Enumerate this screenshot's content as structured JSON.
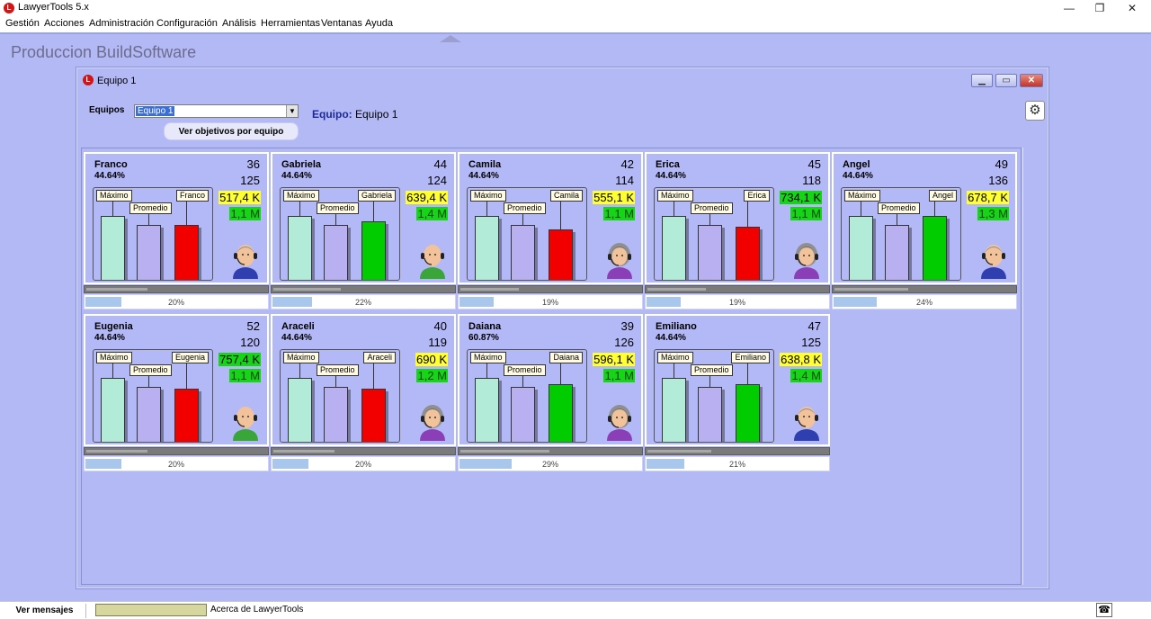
{
  "window": {
    "title": "LawyerTools 5.x"
  },
  "menu": [
    "Gestión",
    "Acciones",
    "Administración",
    "Configuración",
    "Análisis",
    "Herramientas",
    "Ventanas",
    "Ayuda"
  ],
  "mdi": {
    "title": "Produccion BuildSoftware"
  },
  "child": {
    "title": "Equipo 1",
    "equipos_label": "Equipos",
    "equipos_value": "Equipo 1",
    "equipo_key": "Equipo:",
    "equipo_value": "Equipo 1",
    "ver_objetivos": "Ver objetivos por equipo"
  },
  "bar_labels": {
    "max": "Máximo",
    "avg": "Promedio"
  },
  "colors": {
    "max": "#b2ecd8",
    "avg": "#b9b0f2",
    "red": "#f20000",
    "green": "#00cc00",
    "yellow": "#ffff33",
    "money2_bg": "#18d418"
  },
  "agents": [
    {
      "name": "Franco",
      "pct": "44.64%",
      "n1": "36",
      "n2": "125",
      "money1": "517,4 K",
      "money1_bg": "#ffff33",
      "money2": "1,1 M",
      "bar": [
        0.7,
        0.6,
        0.6
      ],
      "bar3": "red",
      "avatar": "male-headset-icon",
      "progress_pct": 20,
      "progress": "20%"
    },
    {
      "name": "Gabriela",
      "pct": "44.64%",
      "n1": "44",
      "n2": "124",
      "money1": "639,4 K",
      "money1_bg": "#ffff33",
      "money2": "1,4 M",
      "bar": [
        0.7,
        0.6,
        0.64
      ],
      "bar3": "green",
      "avatar": "bald-headset-icon",
      "progress_pct": 22,
      "progress": "22%"
    },
    {
      "name": "Camila",
      "pct": "44.64%",
      "n1": "42",
      "n2": "114",
      "money1": "555,1 K",
      "money1_bg": "#ffff33",
      "money2": "1,1 M",
      "bar": [
        0.7,
        0.6,
        0.55
      ],
      "bar3": "red",
      "avatar": "female-headset-icon",
      "progress_pct": 19,
      "progress": "19%"
    },
    {
      "name": "Erica",
      "pct": "44.64%",
      "n1": "45",
      "n2": "118",
      "money1": "734,1 K",
      "money1_bg": "#18d418",
      "money2": "1,1 M",
      "bar": [
        0.7,
        0.6,
        0.58
      ],
      "bar3": "red",
      "avatar": "female-headset-icon",
      "progress_pct": 19,
      "progress": "19%"
    },
    {
      "name": "Angel",
      "pct": "44.64%",
      "n1": "49",
      "n2": "136",
      "money1": "678,7 K",
      "money1_bg": "#ffff33",
      "money2": "1,3 M",
      "bar": [
        0.7,
        0.6,
        0.7
      ],
      "bar3": "green",
      "avatar": "male-headset-icon",
      "progress_pct": 24,
      "progress": "24%"
    },
    {
      "name": "Eugenia",
      "pct": "44.64%",
      "n1": "52",
      "n2": "120",
      "money1": "757,4 K",
      "money1_bg": "#18d418",
      "money2": "1,1 M",
      "bar": [
        0.7,
        0.6,
        0.58
      ],
      "bar3": "red",
      "avatar": "bald-headset-icon",
      "progress_pct": 20,
      "progress": "20%"
    },
    {
      "name": "Araceli",
      "pct": "44.64%",
      "n1": "40",
      "n2": "119",
      "money1": "690 K",
      "money1_bg": "#ffff33",
      "money2": "1,2 M",
      "bar": [
        0.7,
        0.6,
        0.58
      ],
      "bar3": "red",
      "avatar": "female-headset-icon",
      "progress_pct": 20,
      "progress": "20%"
    },
    {
      "name": "Daiana",
      "pct": "60.87%",
      "n1": "39",
      "n2": "126",
      "money1": "596,1 K",
      "money1_bg": "#ffff33",
      "money2": "1,1 M",
      "bar": [
        0.7,
        0.6,
        0.63
      ],
      "bar3": "green",
      "avatar": "female-headset-icon",
      "progress_pct": 29,
      "progress": "29%"
    },
    {
      "name": "Emiliano",
      "pct": "44.64%",
      "n1": "47",
      "n2": "125",
      "money1": "638,8 K",
      "money1_bg": "#ffff33",
      "money2": "1,4 M",
      "bar": [
        0.7,
        0.6,
        0.63
      ],
      "bar3": "green",
      "avatar": "male-headset-icon",
      "progress_pct": 21,
      "progress": "21%"
    }
  ],
  "statusbar": {
    "messages": "Ver mensajes",
    "about": "Acerca de LawyerTools"
  }
}
